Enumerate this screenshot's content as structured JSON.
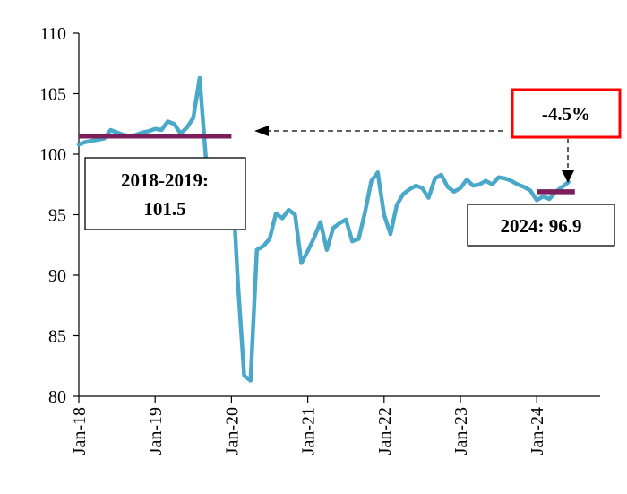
{
  "chart_data": {
    "type": "line",
    "title": "",
    "xlabel": "",
    "ylabel": "",
    "ylim": [
      80,
      110
    ],
    "yticks": [
      80,
      85,
      90,
      95,
      100,
      105,
      110
    ],
    "xticks": [
      "Jan-18",
      "Jan-19",
      "Jan-20",
      "Jan-21",
      "Jan-22",
      "Jan-23",
      "Jan-24"
    ],
    "grid": false,
    "legend": "none",
    "series": [
      {
        "color": "#4aa8c8",
        "start": "2018-01",
        "values": [
          100.8,
          101.0,
          101.1,
          101.2,
          101.3,
          102.0,
          101.8,
          101.6,
          101.5,
          101.6,
          101.8,
          101.9,
          102.1,
          102.0,
          102.7,
          102.5,
          101.7,
          102.2,
          103.0,
          106.3,
          99.5,
          98.2,
          99.3,
          99.0,
          99.3,
          89.5,
          81.7,
          81.3,
          92.1,
          92.4,
          93.0,
          95.1,
          94.7,
          95.4,
          95.0,
          91.0,
          92.0,
          93.1,
          94.4,
          92.1,
          93.9,
          94.3,
          94.6,
          92.8,
          93.0,
          95.2,
          97.8,
          98.5,
          95.0,
          93.4,
          95.8,
          96.7,
          97.1,
          97.4,
          97.2,
          96.4,
          98.0,
          98.3,
          97.3,
          96.9,
          97.2,
          97.9,
          97.4,
          97.5,
          97.8,
          97.5,
          98.1,
          98.0,
          97.8,
          97.5,
          97.3,
          97.0,
          96.2,
          96.5,
          96.3,
          96.9,
          97.3,
          97.7
        ]
      },
      {
        "color": "#b8dfe8",
        "start": "2019-10",
        "values": [
          99.5,
          96.8,
          99.0,
          99.2,
          99.3
        ]
      }
    ],
    "reference_lines": [
      {
        "from": "2018-01",
        "to": "2020-01",
        "value": 101.5,
        "color": "#7a1f5c"
      },
      {
        "from": "2024-01",
        "to": "2024-07",
        "value": 96.9,
        "color": "#7a1f5c"
      }
    ],
    "annotations": {
      "pre_period": {
        "line1": "2018-2019:",
        "line2": "101.5"
      },
      "recent": {
        "text": "2024: 96.9"
      },
      "change": {
        "text": "-4.5%",
        "border_color": "#ff0000"
      }
    }
  }
}
